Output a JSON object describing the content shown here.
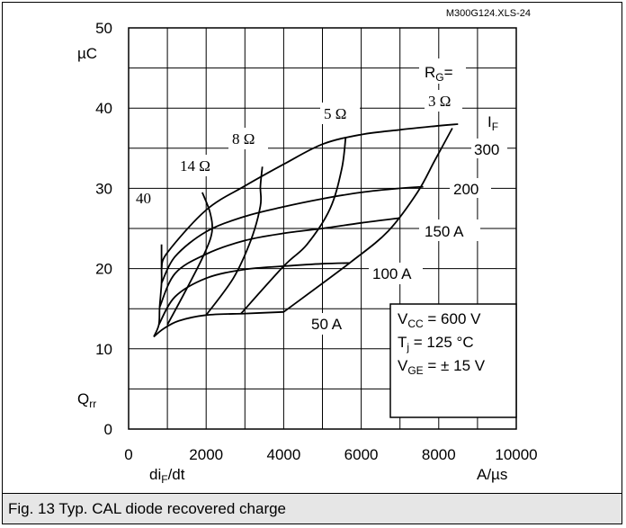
{
  "chart_data": {
    "type": "line",
    "source_label": "M300G124.XLS-24",
    "xlabel": "di_F/dt",
    "x_unit": "A/µs",
    "ylabel": "Q_rr",
    "y_unit": "µC",
    "xlim": [
      0,
      10000
    ],
    "ylim": [
      0,
      50
    ],
    "x_ticks": [
      "0",
      "2000",
      "4000",
      "6000",
      "8000",
      "10000"
    ],
    "y_ticks": [
      "0",
      "10",
      "20",
      "30",
      "40",
      "50"
    ],
    "grid": true,
    "if_header": "I_F",
    "rg_header": "R_G=",
    "current_curves": [
      {
        "label": "50 A",
        "points": [
          [
            650,
            11.5
          ],
          [
            900,
            12.5
          ],
          [
            1300,
            13.5
          ],
          [
            2000,
            14.2
          ],
          [
            3000,
            14.4
          ],
          [
            4000,
            14.6
          ]
        ]
      },
      {
        "label": "100 A",
        "points": [
          [
            780,
            13.0
          ],
          [
            1200,
            16.5
          ],
          [
            2000,
            18.8
          ],
          [
            3000,
            19.9
          ],
          [
            4000,
            20.3
          ],
          [
            5000,
            20.6
          ],
          [
            5700,
            20.7
          ]
        ]
      },
      {
        "label": "150 A",
        "points": [
          [
            800,
            15.2
          ],
          [
            1200,
            19.4
          ],
          [
            2000,
            21.8
          ],
          [
            3000,
            23.5
          ],
          [
            4000,
            24.4
          ],
          [
            5000,
            25.0
          ],
          [
            6000,
            25.7
          ],
          [
            7000,
            26.3
          ]
        ]
      },
      {
        "label": "200",
        "points": [
          [
            850,
            18.2
          ],
          [
            1200,
            21.5
          ],
          [
            2000,
            24.6
          ],
          [
            3000,
            26.5
          ],
          [
            4000,
            27.7
          ],
          [
            5000,
            28.7
          ],
          [
            6000,
            29.5
          ],
          [
            7000,
            30.0
          ],
          [
            7600,
            30.2
          ]
        ]
      },
      {
        "label": "300",
        "points": [
          [
            850,
            20.0
          ],
          [
            1000,
            22.0
          ],
          [
            2000,
            27.3
          ],
          [
            3000,
            30.3
          ],
          [
            4000,
            33.0
          ],
          [
            5000,
            35.5
          ],
          [
            6000,
            36.7
          ],
          [
            7000,
            37.3
          ],
          [
            8000,
            37.8
          ],
          [
            8500,
            38.0
          ]
        ]
      }
    ],
    "rg_curves": [
      {
        "label": "40",
        "points": [
          [
            650,
            11.5
          ],
          [
            780,
            13.0
          ],
          [
            800,
            15.2
          ],
          [
            850,
            18.2
          ],
          [
            850,
            20.0
          ],
          [
            850,
            23.0
          ]
        ]
      },
      {
        "label": "14 Ω",
        "points": [
          [
            1000,
            13.0
          ],
          [
            1500,
            17.5
          ],
          [
            1950,
            21.8
          ],
          [
            2150,
            24.6
          ],
          [
            2100,
            27.0
          ],
          [
            1900,
            29.5
          ]
        ]
      },
      {
        "label": "8 Ω",
        "points": [
          [
            2000,
            14.2
          ],
          [
            2700,
            18.8
          ],
          [
            3150,
            23.5
          ],
          [
            3400,
            27.8
          ],
          [
            3400,
            30.2
          ],
          [
            3450,
            32.7
          ]
        ]
      },
      {
        "label": "5 Ω",
        "points": [
          [
            2900,
            14.4
          ],
          [
            4000,
            20.3
          ],
          [
            4600,
            23.0
          ],
          [
            5200,
            27.5
          ],
          [
            5500,
            32.5
          ],
          [
            5600,
            36.4
          ]
        ]
      },
      {
        "label": "3 Ω",
        "points": [
          [
            4000,
            14.6
          ],
          [
            5700,
            20.7
          ],
          [
            6700,
            24.7
          ],
          [
            7450,
            29.5
          ],
          [
            7900,
            33.5
          ],
          [
            8350,
            37.5
          ]
        ]
      }
    ],
    "conditions": {
      "vcc": "V_CC = 600 V",
      "tj": "T_j = 125 °C",
      "vge": "V_GE = ± 15 V"
    }
  },
  "caption": "Fig. 13 Typ. CAL diode recovered charge"
}
